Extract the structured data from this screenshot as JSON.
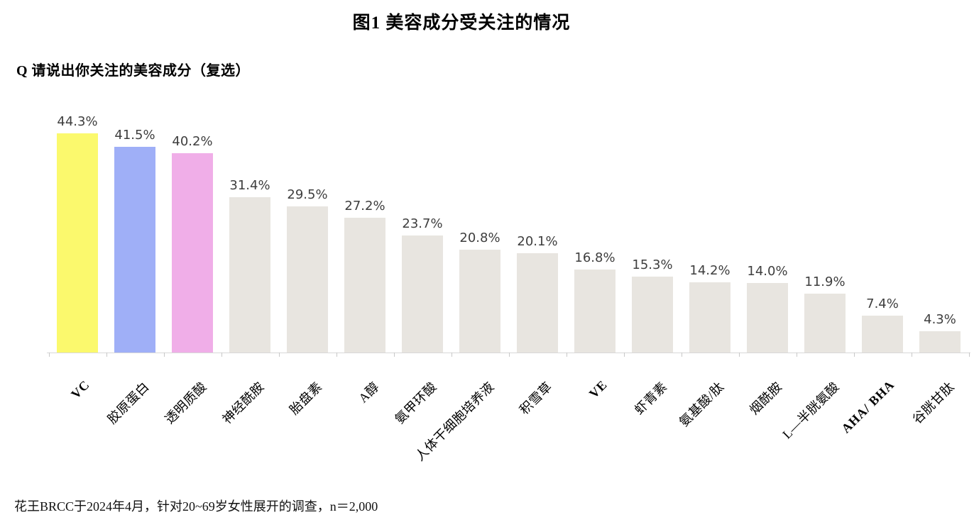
{
  "page": {
    "title": "图1 美容成分受关注的情况",
    "question": "Q 请说出你关注的美容成分（复选）",
    "footnote": "花王BRCC于2024年4月，针对20~69岁女性展开的调查，n＝2,000"
  },
  "chart_data": {
    "type": "bar",
    "title": "图1 美容成分受关注的情况",
    "categories": [
      "VC",
      "胶原蛋白",
      "透明质酸",
      "神经酰胺",
      "胎盘素",
      "A醇",
      "氨甲环酸",
      "人体干细胞培养液",
      "积雪草",
      "VE",
      "虾青素",
      "氨基酸/肽",
      "烟酰胺",
      "L—半胱氨酸",
      "AHA/ BHA",
      "谷胱甘肽"
    ],
    "values": [
      44.3,
      41.5,
      40.2,
      31.4,
      29.5,
      27.2,
      23.7,
      20.8,
      20.1,
      16.8,
      15.3,
      14.2,
      14.0,
      11.9,
      7.4,
      4.3
    ],
    "value_labels": [
      "44.3%",
      "41.5%",
      "40.2%",
      "31.4%",
      "29.5%",
      "27.2%",
      "23.7%",
      "20.8%",
      "20.1%",
      "16.8%",
      "15.3%",
      "14.2%",
      "14.0%",
      "11.9%",
      "7.4%",
      "4.3%"
    ],
    "bar_colors": [
      "#FBF96D",
      "#9FAFF7",
      "#F0AEE8",
      "#E8E5E0",
      "#E8E5E0",
      "#E8E5E0",
      "#E8E5E0",
      "#E8E5E0",
      "#E8E5E0",
      "#E8E5E0",
      "#E8E5E0",
      "#E8E5E0",
      "#E8E5E0",
      "#E8E5E0",
      "#E8E5E0",
      "#E8E5E0"
    ],
    "xlabel": "",
    "ylabel": "",
    "ylim": [
      0,
      48
    ],
    "grid": false,
    "legend": null,
    "value_label_color": "#3e3e3e",
    "axis_color": "#d8d8d8"
  }
}
